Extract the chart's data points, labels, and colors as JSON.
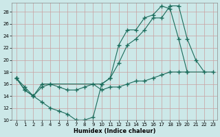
{
  "xlabel": "Humidex (Indice chaleur)",
  "bg_color": "#cce8e8",
  "line_color": "#1a6b5a",
  "grid_color": "#b0d0d0",
  "xlim": [
    -0.5,
    23.5
  ],
  "ylim": [
    10,
    29.5
  ],
  "xticks": [
    0,
    1,
    2,
    3,
    4,
    5,
    6,
    7,
    8,
    9,
    10,
    11,
    12,
    13,
    14,
    15,
    16,
    17,
    18,
    19,
    20,
    21,
    22,
    23
  ],
  "yticks": [
    10,
    12,
    14,
    16,
    18,
    20,
    22,
    24,
    26,
    28
  ],
  "line1_x": [
    0,
    1,
    2,
    3,
    4,
    5,
    6,
    7,
    8,
    9,
    10,
    11,
    12,
    13,
    14,
    15,
    16,
    17,
    18,
    19,
    20,
    21,
    22
  ],
  "line1_y": [
    17,
    15,
    14,
    13,
    12,
    11.5,
    11,
    10,
    10,
    10.5,
    16,
    17,
    19.5,
    22.5,
    23.5,
    25,
    27,
    27,
    29,
    29,
    23.5,
    20,
    18
  ],
  "line2_x": [
    0,
    1,
    2,
    3,
    4,
    10,
    11,
    12,
    13,
    14,
    15,
    16,
    17,
    18,
    19,
    20
  ],
  "line2_y": [
    17,
    15,
    14,
    15.5,
    16,
    16,
    17,
    22.5,
    25,
    25,
    27,
    27.5,
    29,
    28.5,
    23.5,
    18
  ],
  "line3_x": [
    0,
    1,
    2,
    3,
    4,
    5,
    6,
    7,
    8,
    9,
    10,
    11,
    12,
    13,
    14,
    15,
    16,
    17,
    18,
    19,
    20,
    23
  ],
  "line3_y": [
    17,
    15.5,
    14,
    16,
    16,
    15.5,
    15,
    15,
    15.5,
    16,
    15,
    15.5,
    15.5,
    16,
    16.5,
    16.5,
    17,
    17.5,
    18,
    18,
    18,
    18
  ]
}
